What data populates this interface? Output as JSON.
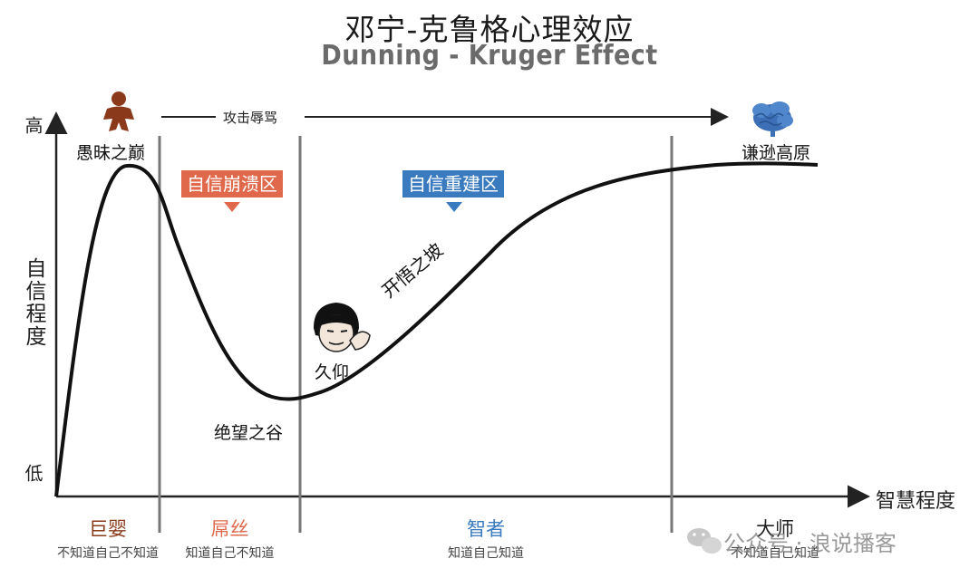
{
  "title": {
    "cn": "邓宁-克鲁格心理效应",
    "en": "Dunning - Kruger Effect"
  },
  "axes": {
    "y_high": "高",
    "y_label": "自信程度",
    "y_low": "低",
    "x_label": "智慧程度"
  },
  "arrow_text": "攻击辱骂",
  "points": {
    "peak": "愚昧之巅",
    "valley": "绝望之谷",
    "slope": "开悟之坡",
    "plateau": "谦逊高原",
    "meme": "久仰"
  },
  "zones": {
    "collapse": "自信崩溃区",
    "rebuild": "自信重建区"
  },
  "levels": [
    {
      "name": "巨婴",
      "desc": "不知道自己不知道"
    },
    {
      "name": "屌丝",
      "desc": "知道自己不知道"
    },
    {
      "name": "智者",
      "desc": "知道自己知道"
    },
    {
      "name": "大师",
      "desc": "不知道自己知道"
    }
  ],
  "watermark": "公众号 · 浪说播客",
  "colors": {
    "red": "#e0694c",
    "blue": "#3a7bbf",
    "brown": "#8a3a1a",
    "brain": "#3d6fb6",
    "baby": "#8a3a1a"
  }
}
